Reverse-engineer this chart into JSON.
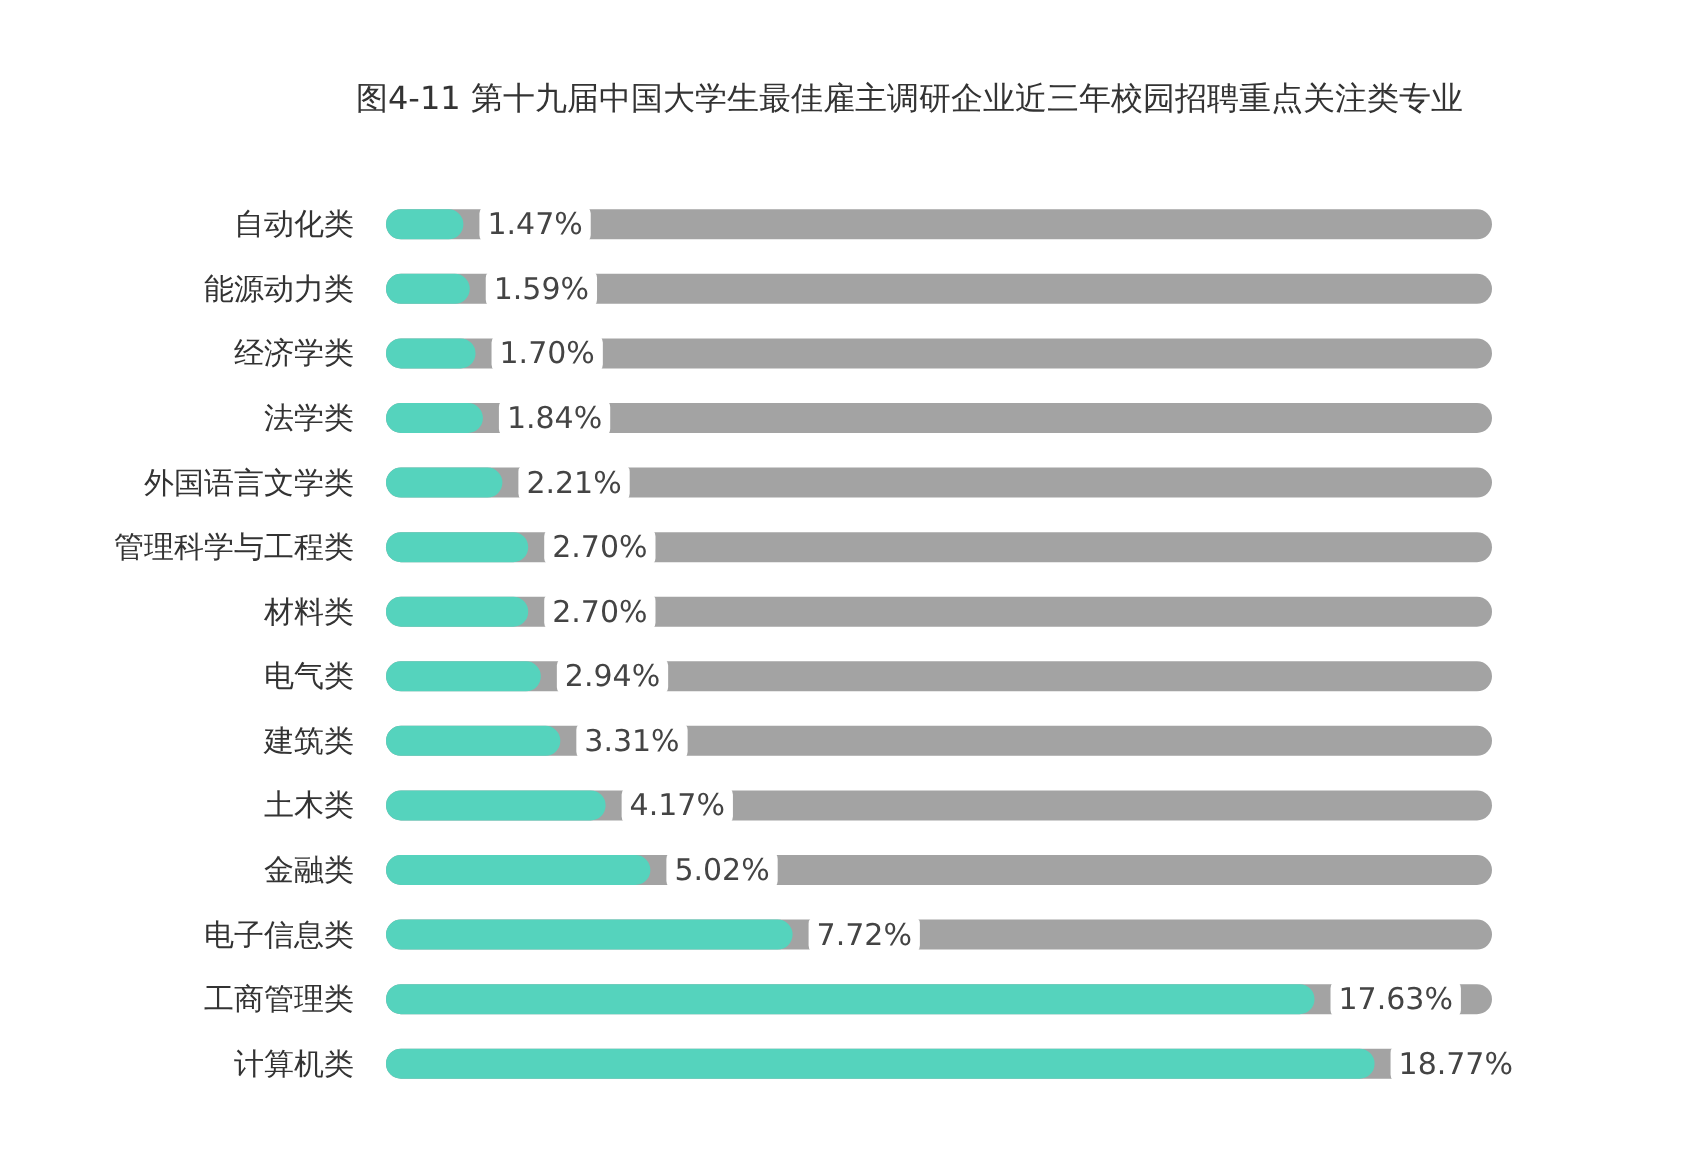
{
  "chart_data": {
    "type": "bar",
    "orientation": "horizontal",
    "title": "图4-11 第十九届中国大学生最佳雇主调研企业近三年校园招聘重点关注类专业",
    "categories": [
      "自动化类",
      "能源动力类",
      "经济学类",
      "法学类",
      "外国语言文学类",
      "管理科学与工程类",
      "材料类",
      "电气类",
      "建筑类",
      "土木类",
      "金融类",
      "电子信息类",
      "工商管理类",
      "计算机类"
    ],
    "values": [
      1.47,
      1.59,
      1.7,
      1.84,
      2.21,
      2.7,
      2.7,
      2.94,
      3.31,
      4.17,
      5.02,
      7.72,
      17.63,
      18.77
    ],
    "value_labels": [
      "1.47%",
      "1.59%",
      "1.70%",
      "1.84%",
      "2.21%",
      "2.70%",
      "2.70%",
      "2.94%",
      "3.31%",
      "4.17%",
      "5.02%",
      "7.72%",
      "17.63%",
      "18.77%"
    ],
    "color": "#55d3bd"
  }
}
